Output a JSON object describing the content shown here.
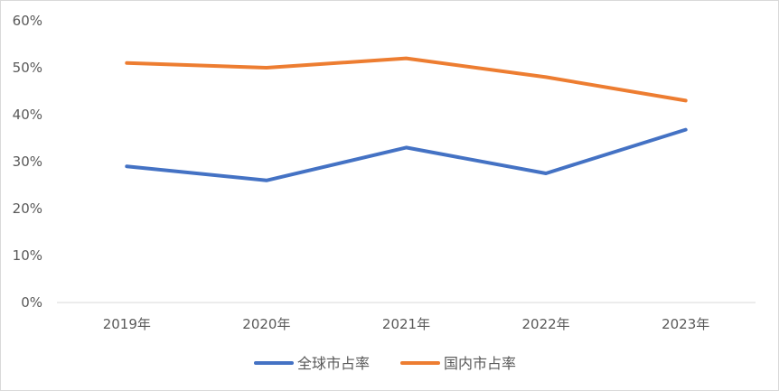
{
  "chart_data": {
    "type": "line",
    "title": "",
    "xlabel": "",
    "ylabel": "",
    "categories": [
      "2019年",
      "2020年",
      "2021年",
      "2022年",
      "2023年"
    ],
    "ylim": [
      0,
      0.6
    ],
    "yticks": [
      0,
      0.1,
      0.2,
      0.3,
      0.4,
      0.5,
      0.6
    ],
    "ytick_labels": [
      "0%",
      "10%",
      "20%",
      "30%",
      "40%",
      "50%",
      "60%"
    ],
    "grid": false,
    "legend_position": "bottom",
    "series": [
      {
        "name": "全球市占率",
        "color": "#4472C4",
        "values": [
          0.29,
          0.26,
          0.33,
          0.275,
          0.368
        ]
      },
      {
        "name": "国内市占率",
        "color": "#ED7D31",
        "values": [
          0.51,
          0.5,
          0.52,
          0.48,
          0.43
        ]
      }
    ]
  }
}
